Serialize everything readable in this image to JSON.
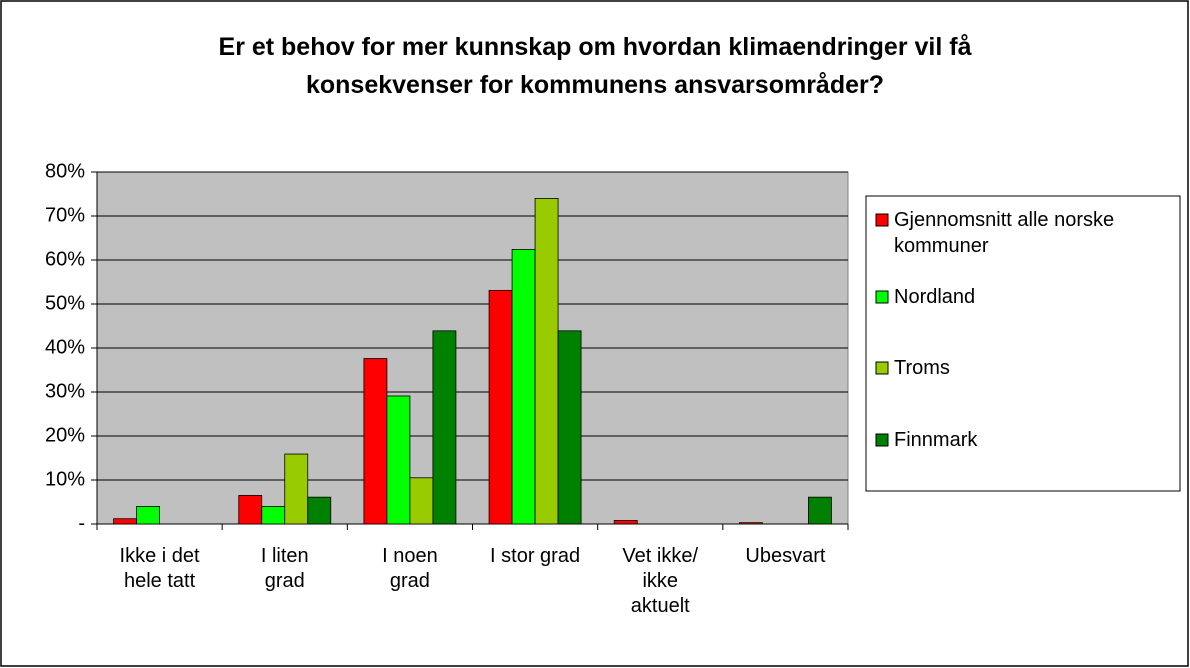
{
  "chart_data": {
    "type": "bar",
    "title": "Er et behov for mer kunnskap om hvordan klimaendringer vil få\nkonsekvenser for kommunens ansvarsområder?",
    "categories": [
      "Ikke i det\nhele tatt",
      "I liten\ngrad",
      "I noen\ngrad",
      "I stor grad",
      "Vet ikke/\nikke\naktuelt",
      "Ubesvart"
    ],
    "series": [
      {
        "name": "Gjennomsnitt alle norske kommuner",
        "color": "#ff0000",
        "values": [
          1.2,
          6.5,
          37.6,
          53.1,
          0.8,
          0.3
        ]
      },
      {
        "name": "Nordland",
        "color": "#00ff00",
        "values": [
          4,
          4,
          29.1,
          62.4,
          0,
          0
        ]
      },
      {
        "name": "Troms",
        "color": "#99cc00",
        "values": [
          0,
          15.9,
          10.5,
          74,
          0,
          0
        ]
      },
      {
        "name": "Finnmark",
        "color": "#008000",
        "values": [
          0,
          6.1,
          43.9,
          43.9,
          0,
          6.1
        ]
      }
    ],
    "ylim": [
      0,
      80
    ],
    "yticks": [
      {
        "value": 0,
        "label": "-"
      },
      {
        "value": 10,
        "label": "10%"
      },
      {
        "value": 20,
        "label": "20%"
      },
      {
        "value": 30,
        "label": "30%"
      },
      {
        "value": 40,
        "label": "40%"
      },
      {
        "value": 50,
        "label": "50%"
      },
      {
        "value": 60,
        "label": "60%"
      },
      {
        "value": 70,
        "label": "70%"
      },
      {
        "value": 80,
        "label": "80%"
      }
    ],
    "grid": true,
    "legend": "right"
  }
}
